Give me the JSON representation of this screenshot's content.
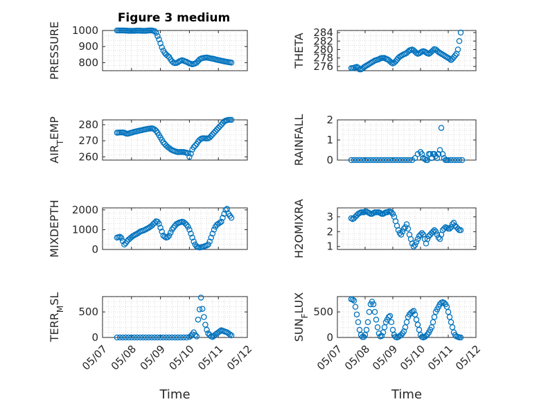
{
  "title": "Figure 3 medium",
  "colors": {
    "marker": "#0072BD",
    "axes": "#262626"
  },
  "x_tick_labels": [
    "05/07",
    "05/08",
    "05/09",
    "05/10",
    "05/11",
    "05/12"
  ],
  "chart_data": [
    {
      "type": "scatter",
      "id": "pressure",
      "ylabel": "PRESSURE",
      "ylabel_sub": "",
      "xlim": [
        0,
        5
      ],
      "ylim": [
        750,
        1000
      ],
      "yticks": [
        800,
        900,
        1000
      ],
      "grid": true,
      "x": [
        0.5,
        0.55,
        0.6,
        0.65,
        0.7,
        0.75,
        0.8,
        0.85,
        0.9,
        0.95,
        1.0,
        1.05,
        1.1,
        1.15,
        1.2,
        1.25,
        1.3,
        1.35,
        1.4,
        1.45,
        1.5,
        1.55,
        1.6,
        1.65,
        1.7,
        1.75,
        1.8,
        1.85,
        1.9,
        1.95,
        2.0,
        2.05,
        2.1,
        2.15,
        2.2,
        2.25,
        2.3,
        2.35,
        2.4,
        2.45,
        2.5,
        2.55,
        2.6,
        2.65,
        2.7,
        2.75,
        2.8,
        2.85,
        2.9,
        2.95,
        3.0,
        3.05,
        3.1,
        3.15,
        3.2,
        3.25,
        3.3,
        3.35,
        3.4,
        3.45,
        3.5,
        3.55,
        3.6,
        3.65,
        3.7,
        3.75,
        3.8,
        3.85,
        3.9,
        3.95,
        4.0,
        4.05,
        4.1,
        4.15,
        4.2,
        4.25,
        4.3,
        4.35,
        4.4,
        4.45
      ],
      "y": [
        1000,
        1000,
        1000,
        1000,
        1000,
        1000,
        999,
        999,
        998,
        998,
        998,
        998,
        998,
        999,
        999,
        999,
        999,
        998,
        998,
        998,
        998,
        999,
        1000,
        1000,
        1000,
        998,
        996,
        985,
        965,
        945,
        920,
        895,
        875,
        860,
        850,
        842,
        835,
        820,
        808,
        800,
        797,
        798,
        802,
        808,
        812,
        815,
        812,
        808,
        805,
        800,
        795,
        793,
        790,
        792,
        795,
        800,
        810,
        820,
        825,
        828,
        830,
        831,
        832,
        830,
        828,
        826,
        825,
        823,
        820,
        818,
        816,
        814,
        812,
        810,
        808,
        806,
        805,
        803,
        802,
        800
      ]
    },
    {
      "type": "scatter",
      "id": "theta",
      "ylabel": "THETA",
      "ylabel_sub": "",
      "xlim": [
        0,
        5
      ],
      "ylim": [
        275,
        284.5
      ],
      "yticks": [
        276,
        278,
        280,
        282,
        284
      ],
      "grid": true,
      "x": [
        0.5,
        0.55,
        0.6,
        0.65,
        0.7,
        0.75,
        0.8,
        0.85,
        0.9,
        0.95,
        1.0,
        1.05,
        1.1,
        1.15,
        1.2,
        1.25,
        1.3,
        1.35,
        1.4,
        1.45,
        1.5,
        1.55,
        1.6,
        1.65,
        1.7,
        1.75,
        1.8,
        1.85,
        1.9,
        1.95,
        2.0,
        2.05,
        2.1,
        2.15,
        2.2,
        2.25,
        2.3,
        2.35,
        2.4,
        2.45,
        2.5,
        2.55,
        2.6,
        2.65,
        2.7,
        2.75,
        2.8,
        2.85,
        2.9,
        2.95,
        3.0,
        3.05,
        3.1,
        3.15,
        3.2,
        3.25,
        3.3,
        3.35,
        3.4,
        3.45,
        3.5,
        3.55,
        3.6,
        3.65,
        3.7,
        3.75,
        3.8,
        3.85,
        3.9,
        3.95,
        4.0,
        4.05,
        4.1,
        4.15,
        4.2,
        4.25,
        4.3,
        4.35,
        4.4,
        4.45
      ],
      "y": [
        275.6,
        275.6,
        275.7,
        275.8,
        275.9,
        275.7,
        275.3,
        275.3,
        275.5,
        275.8,
        276.0,
        276.2,
        276.4,
        276.6,
        276.8,
        277.0,
        277.2,
        277.4,
        277.5,
        277.6,
        277.7,
        277.9,
        278.0,
        278.0,
        278.0,
        277.8,
        277.7,
        277.5,
        277.2,
        276.9,
        276.7,
        276.9,
        277.2,
        277.6,
        278.0,
        278.3,
        278.5,
        278.7,
        278.9,
        279.0,
        279.2,
        279.5,
        279.8,
        279.9,
        280.0,
        279.8,
        279.5,
        279.2,
        279.0,
        279.1,
        279.3,
        279.5,
        279.6,
        279.5,
        279.3,
        279.1,
        279.0,
        279.2,
        279.5,
        279.8,
        280.1,
        280.0,
        279.7,
        279.4,
        279.2,
        279.0,
        278.8,
        278.6,
        278.4,
        278.2,
        278.0,
        277.8,
        277.5,
        277.8,
        278.2,
        278.6,
        279.0,
        280.0,
        282.0,
        284.0
      ]
    },
    {
      "type": "scatter",
      "id": "air_temp",
      "ylabel": "AIR",
      "ylabel_sub": "T",
      "ylabel_rest": "EMP",
      "xlim": [
        0,
        5
      ],
      "ylim": [
        258,
        283
      ],
      "yticks": [
        260,
        270,
        280
      ],
      "grid": true,
      "x": [
        0.5,
        0.55,
        0.6,
        0.65,
        0.7,
        0.75,
        0.8,
        0.85,
        0.9,
        0.95,
        1.0,
        1.05,
        1.1,
        1.15,
        1.2,
        1.25,
        1.3,
        1.35,
        1.4,
        1.45,
        1.5,
        1.55,
        1.6,
        1.65,
        1.7,
        1.75,
        1.8,
        1.85,
        1.9,
        1.95,
        2.0,
        2.05,
        2.1,
        2.15,
        2.2,
        2.25,
        2.3,
        2.35,
        2.4,
        2.45,
        2.5,
        2.55,
        2.6,
        2.65,
        2.7,
        2.75,
        2.8,
        2.85,
        2.9,
        2.95,
        3.0,
        3.05,
        3.1,
        3.15,
        3.2,
        3.25,
        3.3,
        3.35,
        3.4,
        3.45,
        3.5,
        3.55,
        3.6,
        3.65,
        3.7,
        3.75,
        3.8,
        3.85,
        3.9,
        3.95,
        4.0,
        4.05,
        4.1,
        4.15,
        4.2,
        4.25,
        4.3,
        4.35,
        4.4,
        4.45
      ],
      "y": [
        275.0,
        275.1,
        275.2,
        275.2,
        275.2,
        275.0,
        274.6,
        274.4,
        274.5,
        274.8,
        275.0,
        275.3,
        275.6,
        275.8,
        276.0,
        276.2,
        276.4,
        276.6,
        276.8,
        277.0,
        277.2,
        277.4,
        277.5,
        277.6,
        277.7,
        277.5,
        277.0,
        276.2,
        275.0,
        273.5,
        272.0,
        270.5,
        269.0,
        268.0,
        267.0,
        266.2,
        265.5,
        264.8,
        264.2,
        263.8,
        263.5,
        263.2,
        263.0,
        263.0,
        263.0,
        263.0,
        263.0,
        262.8,
        262.5,
        262.3,
        260.0,
        262.0,
        264.5,
        266.0,
        267.0,
        268.0,
        269.5,
        270.5,
        271.2,
        271.5,
        271.6,
        271.5,
        271.4,
        271.5,
        272.0,
        273.0,
        274.0,
        275.0,
        276.0,
        277.0,
        278.0,
        279.0,
        280.0,
        281.0,
        282.0,
        282.5,
        282.8,
        283.0,
        283.0,
        283.0
      ]
    },
    {
      "type": "scatter",
      "id": "rainfall",
      "ylabel": "RAINFALL",
      "ylabel_sub": "",
      "xlim": [
        0,
        5
      ],
      "ylim": [
        0,
        2
      ],
      "yticks": [
        0,
        1,
        2
      ],
      "grid": true,
      "x": [
        0.5,
        0.6,
        0.7,
        0.8,
        0.9,
        1.0,
        1.1,
        1.2,
        1.3,
        1.4,
        1.5,
        1.6,
        1.7,
        1.8,
        1.9,
        2.0,
        2.1,
        2.2,
        2.3,
        2.4,
        2.5,
        2.6,
        2.7,
        2.8,
        2.9,
        3.0,
        3.05,
        3.1,
        3.15,
        3.2,
        3.25,
        3.3,
        3.35,
        3.4,
        3.45,
        3.5,
        3.55,
        3.6,
        3.65,
        3.7,
        3.75,
        3.8,
        3.85,
        3.9,
        3.95,
        4.0,
        4.1,
        4.2,
        4.3,
        4.4,
        4.5
      ],
      "y": [
        0,
        0,
        0,
        0,
        0,
        0,
        0,
        0,
        0,
        0,
        0,
        0,
        0,
        0,
        0,
        0,
        0,
        0,
        0,
        0,
        0,
        0,
        0,
        0.1,
        0.3,
        0.4,
        0.3,
        0.1,
        0.05,
        0,
        0,
        0.3,
        0.3,
        0.1,
        0.3,
        0.3,
        0.2,
        0.1,
        0.3,
        0.5,
        1.6,
        0.3,
        0.1,
        0,
        0,
        0,
        0,
        0,
        0,
        0,
        0
      ]
    },
    {
      "type": "scatter",
      "id": "mixdepth",
      "ylabel": "MIXDEPTH",
      "ylabel_sub": "",
      "xlim": [
        0,
        5
      ],
      "ylim": [
        0,
        2100
      ],
      "yticks": [
        0,
        1000,
        2000
      ],
      "grid": true,
      "x": [
        0.5,
        0.55,
        0.6,
        0.65,
        0.7,
        0.75,
        0.8,
        0.85,
        0.9,
        0.95,
        1.0,
        1.05,
        1.1,
        1.15,
        1.2,
        1.25,
        1.3,
        1.35,
        1.4,
        1.45,
        1.5,
        1.55,
        1.6,
        1.65,
        1.7,
        1.75,
        1.8,
        1.85,
        1.9,
        1.95,
        2.0,
        2.05,
        2.1,
        2.15,
        2.2,
        2.25,
        2.3,
        2.35,
        2.4,
        2.45,
        2.5,
        2.55,
        2.6,
        2.65,
        2.7,
        2.75,
        2.8,
        2.85,
        2.9,
        2.95,
        3.0,
        3.05,
        3.1,
        3.15,
        3.2,
        3.25,
        3.3,
        3.35,
        3.4,
        3.45,
        3.5,
        3.55,
        3.6,
        3.65,
        3.7,
        3.75,
        3.8,
        3.85,
        3.9,
        3.95,
        4.0,
        4.05,
        4.1,
        4.15,
        4.2,
        4.25,
        4.3,
        4.35,
        4.4,
        4.45
      ],
      "y": [
        600,
        620,
        640,
        580,
        420,
        250,
        320,
        420,
        500,
        560,
        620,
        680,
        720,
        760,
        800,
        850,
        900,
        930,
        950,
        980,
        1020,
        1060,
        1100,
        1150,
        1200,
        1280,
        1350,
        1420,
        1400,
        1300,
        1100,
        900,
        700,
        640,
        600,
        620,
        700,
        850,
        1000,
        1100,
        1200,
        1280,
        1320,
        1360,
        1380,
        1400,
        1380,
        1320,
        1250,
        1150,
        1000,
        800,
        600,
        400,
        250,
        150,
        120,
        100,
        110,
        130,
        150,
        180,
        200,
        250,
        400,
        600,
        800,
        1000,
        1150,
        1250,
        1300,
        1350,
        1400,
        1600,
        1800,
        2000,
        2050,
        1800,
        1700,
        1600
      ]
    },
    {
      "type": "scatter",
      "id": "h2omixra",
      "ylabel": "H2OMIXRA",
      "ylabel_sub": "",
      "xlim": [
        0,
        5
      ],
      "ylim": [
        0.8,
        3.6
      ],
      "yticks": [
        1,
        2,
        3
      ],
      "grid": true,
      "x": [
        0.5,
        0.55,
        0.6,
        0.65,
        0.7,
        0.75,
        0.8,
        0.85,
        0.9,
        0.95,
        1.0,
        1.05,
        1.1,
        1.15,
        1.2,
        1.25,
        1.3,
        1.35,
        1.4,
        1.45,
        1.5,
        1.55,
        1.6,
        1.65,
        1.7,
        1.75,
        1.8,
        1.85,
        1.9,
        1.95,
        2.0,
        2.05,
        2.1,
        2.15,
        2.2,
        2.25,
        2.3,
        2.35,
        2.4,
        2.45,
        2.5,
        2.55,
        2.6,
        2.65,
        2.7,
        2.75,
        2.8,
        2.85,
        2.9,
        2.95,
        3.0,
        3.05,
        3.1,
        3.15,
        3.2,
        3.25,
        3.3,
        3.35,
        3.4,
        3.45,
        3.5,
        3.55,
        3.6,
        3.65,
        3.7,
        3.75,
        3.8,
        3.85,
        3.9,
        3.95,
        4.0,
        4.05,
        4.1,
        4.15,
        4.2,
        4.25,
        4.3,
        4.35,
        4.4,
        4.45
      ],
      "y": [
        2.9,
        2.85,
        2.9,
        3.0,
        3.1,
        3.2,
        3.25,
        3.3,
        3.3,
        3.3,
        3.35,
        3.35,
        3.3,
        3.25,
        3.2,
        3.2,
        3.25,
        3.3,
        3.3,
        3.3,
        3.3,
        3.25,
        3.2,
        3.2,
        3.25,
        3.3,
        3.3,
        3.35,
        3.35,
        3.3,
        3.2,
        3.0,
        2.7,
        2.4,
        2.1,
        1.9,
        1.8,
        2.0,
        2.2,
        2.3,
        2.5,
        2.2,
        1.8,
        1.5,
        1.2,
        1.0,
        1.1,
        1.3,
        1.5,
        1.7,
        1.8,
        1.9,
        1.8,
        1.5,
        1.2,
        1.5,
        1.7,
        1.8,
        1.9,
        2.0,
        2.1,
        2.0,
        1.8,
        1.6,
        1.5,
        1.8,
        2.1,
        2.2,
        2.3,
        2.25,
        2.2,
        2.2,
        2.3,
        2.5,
        2.6,
        2.4,
        2.3,
        2.2,
        2.1,
        2.1
      ]
    },
    {
      "type": "scatter",
      "id": "terr_msl",
      "ylabel": "TERR",
      "ylabel_sub": "M",
      "ylabel_rest": "SL",
      "xlim": [
        0,
        5
      ],
      "ylim": [
        0,
        800
      ],
      "yticks": [
        0,
        500
      ],
      "grid": true,
      "x": [
        0.5,
        0.6,
        0.7,
        0.8,
        0.9,
        1.0,
        1.1,
        1.2,
        1.3,
        1.4,
        1.5,
        1.6,
        1.7,
        1.8,
        1.9,
        2.0,
        2.1,
        2.2,
        2.3,
        2.4,
        2.5,
        2.6,
        2.7,
        2.8,
        2.9,
        3.0,
        3.05,
        3.1,
        3.15,
        3.2,
        3.25,
        3.3,
        3.35,
        3.4,
        3.45,
        3.5,
        3.55,
        3.6,
        3.65,
        3.7,
        3.75,
        3.8,
        3.85,
        3.9,
        3.95,
        4.0,
        4.05,
        4.1,
        4.15,
        4.2,
        4.25,
        4.3,
        4.35,
        4.4,
        4.45
      ],
      "y": [
        0,
        0,
        0,
        0,
        0,
        0,
        0,
        0,
        0,
        0,
        0,
        0,
        0,
        0,
        0,
        0,
        0,
        0,
        0,
        0,
        0,
        0,
        0,
        0,
        0,
        10,
        30,
        60,
        100,
        50,
        20,
        350,
        550,
        780,
        560,
        400,
        250,
        150,
        80,
        50,
        20,
        10,
        30,
        60,
        80,
        100,
        120,
        140,
        130,
        120,
        110,
        100,
        80,
        60,
        40
      ]
    },
    {
      "type": "scatter",
      "id": "sun_flux",
      "ylabel": "SUN",
      "ylabel_sub": "F",
      "ylabel_rest": "LUX",
      "xlim": [
        0,
        5
      ],
      "ylim": [
        0,
        800
      ],
      "yticks": [
        0,
        500
      ],
      "grid": true,
      "x": [
        0.5,
        0.55,
        0.6,
        0.65,
        0.7,
        0.75,
        0.8,
        0.85,
        0.9,
        0.95,
        1.0,
        1.05,
        1.1,
        1.15,
        1.2,
        1.25,
        1.3,
        1.35,
        1.4,
        1.45,
        1.5,
        1.55,
        1.6,
        1.65,
        1.7,
        1.75,
        1.8,
        1.85,
        1.9,
        1.95,
        2.0,
        2.05,
        2.1,
        2.15,
        2.2,
        2.25,
        2.3,
        2.35,
        2.4,
        2.45,
        2.5,
        2.55,
        2.6,
        2.65,
        2.7,
        2.75,
        2.8,
        2.85,
        2.9,
        2.95,
        3.0,
        3.05,
        3.1,
        3.15,
        3.2,
        3.25,
        3.3,
        3.35,
        3.4,
        3.45,
        3.5,
        3.55,
        3.6,
        3.65,
        3.7,
        3.75,
        3.8,
        3.85,
        3.9,
        3.95,
        4.0,
        4.05,
        4.1,
        4.15,
        4.2,
        4.25,
        4.3,
        4.35,
        4.4,
        4.45
      ],
      "y": [
        750,
        740,
        720,
        600,
        450,
        300,
        150,
        50,
        10,
        10,
        50,
        150,
        300,
        500,
        650,
        700,
        650,
        500,
        350,
        200,
        80,
        20,
        30,
        100,
        200,
        300,
        350,
        400,
        420,
        300,
        150,
        50,
        10,
        0,
        10,
        30,
        50,
        80,
        120,
        200,
        300,
        400,
        450,
        480,
        500,
        520,
        450,
        350,
        250,
        150,
        50,
        10,
        0,
        10,
        30,
        60,
        100,
        150,
        200,
        300,
        400,
        500,
        550,
        600,
        650,
        680,
        690,
        680,
        650,
        600,
        500,
        400,
        300,
        200,
        100,
        50,
        20,
        10,
        0,
        0
      ]
    }
  ]
}
